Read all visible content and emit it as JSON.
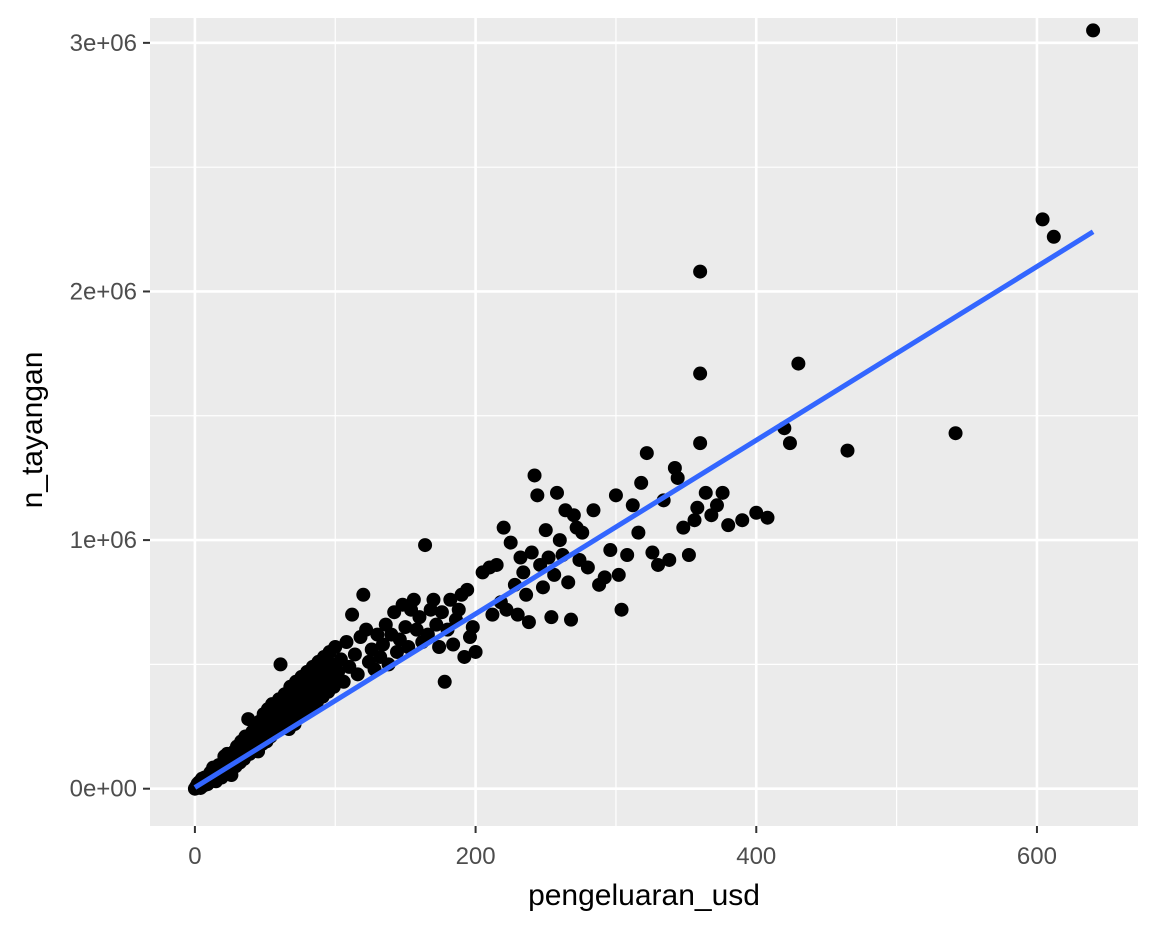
{
  "chart_data": {
    "type": "scatter",
    "title": "",
    "xlabel": "pengeluaran_usd",
    "ylabel": "n_tayangan",
    "xlim": [
      -32,
      672
    ],
    "ylim": [
      -150000,
      3100000
    ],
    "x_ticks": [
      {
        "value": 0,
        "label": "0"
      },
      {
        "value": 200,
        "label": "200"
      },
      {
        "value": 400,
        "label": "400"
      },
      {
        "value": 600,
        "label": "600"
      }
    ],
    "y_ticks": [
      {
        "value": 0,
        "label": "0e+00"
      },
      {
        "value": 1000000,
        "label": "1e+06"
      },
      {
        "value": 2000000,
        "label": "2e+06"
      },
      {
        "value": 3000000,
        "label": "3e+06"
      }
    ],
    "grid": true,
    "legend": "none",
    "colors": {
      "panel": "#ebebeb",
      "grid": "#ffffff",
      "point": "#000000",
      "trend": "#3366ff"
    },
    "trend_line": {
      "type": "linear",
      "from": [
        0,
        5000
      ],
      "to": [
        640,
        2240000
      ]
    },
    "points": [
      [
        0,
        0
      ],
      [
        1,
        2000
      ],
      [
        2,
        5000
      ],
      [
        1,
        9000
      ],
      [
        3,
        14000
      ],
      [
        2,
        20000
      ],
      [
        4,
        3000
      ],
      [
        3,
        26000
      ],
      [
        5,
        22000
      ],
      [
        6,
        12000
      ],
      [
        8,
        30000
      ],
      [
        5,
        40000
      ],
      [
        7,
        45000
      ],
      [
        9,
        18000
      ],
      [
        10,
        50000
      ],
      [
        12,
        40000
      ],
      [
        11,
        65000
      ],
      [
        14,
        55000
      ],
      [
        13,
        85000
      ],
      [
        15,
        30000
      ],
      [
        16,
        70000
      ],
      [
        18,
        60000
      ],
      [
        17,
        95000
      ],
      [
        19,
        45000
      ],
      [
        20,
        80000
      ],
      [
        22,
        110000
      ],
      [
        21,
        130000
      ],
      [
        24,
        75000
      ],
      [
        23,
        140000
      ],
      [
        25,
        100000
      ],
      [
        26,
        55000
      ],
      [
        27,
        120000
      ],
      [
        28,
        150000
      ],
      [
        29,
        90000
      ],
      [
        30,
        170000
      ],
      [
        31,
        130000
      ],
      [
        32,
        105000
      ],
      [
        33,
        190000
      ],
      [
        34,
        150000
      ],
      [
        35,
        120000
      ],
      [
        36,
        210000
      ],
      [
        37,
        160000
      ],
      [
        38,
        280000
      ],
      [
        39,
        140000
      ],
      [
        40,
        190000
      ],
      [
        41,
        230000
      ],
      [
        42,
        170000
      ],
      [
        43,
        250000
      ],
      [
        44,
        200000
      ],
      [
        45,
        150000
      ],
      [
        46,
        270000
      ],
      [
        47,
        220000
      ],
      [
        48,
        180000
      ],
      [
        49,
        300000
      ],
      [
        50,
        240000
      ],
      [
        51,
        190000
      ],
      [
        52,
        320000
      ],
      [
        53,
        260000
      ],
      [
        54,
        210000
      ],
      [
        55,
        340000
      ],
      [
        56,
        280000
      ],
      [
        57,
        230000
      ],
      [
        58,
        300000
      ],
      [
        59,
        250000
      ],
      [
        60,
        360000
      ],
      [
        61,
        500000
      ],
      [
        62,
        270000
      ],
      [
        63,
        330000
      ],
      [
        64,
        380000
      ],
      [
        65,
        290000
      ],
      [
        66,
        350000
      ],
      [
        67,
        240000
      ],
      [
        68,
        410000
      ],
      [
        69,
        310000
      ],
      [
        70,
        370000
      ],
      [
        71,
        260000
      ],
      [
        72,
        430000
      ],
      [
        73,
        330000
      ],
      [
        74,
        390000
      ],
      [
        75,
        290000
      ],
      [
        76,
        450000
      ],
      [
        77,
        350000
      ],
      [
        78,
        400000
      ],
      [
        79,
        310000
      ],
      [
        80,
        470000
      ],
      [
        81,
        370000
      ],
      [
        82,
        420000
      ],
      [
        83,
        330000
      ],
      [
        84,
        490000
      ],
      [
        85,
        390000
      ],
      [
        86,
        440000
      ],
      [
        87,
        350000
      ],
      [
        88,
        510000
      ],
      [
        89,
        410000
      ],
      [
        90,
        460000
      ],
      [
        91,
        370000
      ],
      [
        92,
        530000
      ],
      [
        93,
        430000
      ],
      [
        94,
        480000
      ],
      [
        95,
        390000
      ],
      [
        96,
        550000
      ],
      [
        97,
        450000
      ],
      [
        98,
        500000
      ],
      [
        99,
        410000
      ],
      [
        100,
        570000
      ],
      [
        102,
        470000
      ],
      [
        104,
        520000
      ],
      [
        106,
        430000
      ],
      [
        108,
        590000
      ],
      [
        110,
        490000
      ],
      [
        112,
        700000
      ],
      [
        114,
        540000
      ],
      [
        116,
        460000
      ],
      [
        118,
        610000
      ],
      [
        120,
        780000
      ],
      [
        122,
        640000
      ],
      [
        124,
        510000
      ],
      [
        126,
        560000
      ],
      [
        128,
        480000
      ],
      [
        130,
        620000
      ],
      [
        132,
        530000
      ],
      [
        134,
        580000
      ],
      [
        136,
        660000
      ],
      [
        138,
        500000
      ],
      [
        140,
        620000
      ],
      [
        142,
        710000
      ],
      [
        144,
        550000
      ],
      [
        146,
        600000
      ],
      [
        148,
        740000
      ],
      [
        150,
        650000
      ],
      [
        152,
        570000
      ],
      [
        154,
        720000
      ],
      [
        156,
        760000
      ],
      [
        158,
        640000
      ],
      [
        160,
        690000
      ],
      [
        162,
        590000
      ],
      [
        164,
        980000
      ],
      [
        166,
        620000
      ],
      [
        168,
        720000
      ],
      [
        170,
        760000
      ],
      [
        172,
        660000
      ],
      [
        174,
        570000
      ],
      [
        176,
        710000
      ],
      [
        178,
        430000
      ],
      [
        180,
        640000
      ],
      [
        182,
        760000
      ],
      [
        184,
        580000
      ],
      [
        186,
        680000
      ],
      [
        188,
        720000
      ],
      [
        190,
        780000
      ],
      [
        192,
        530000
      ],
      [
        194,
        800000
      ],
      [
        196,
        610000
      ],
      [
        198,
        650000
      ],
      [
        200,
        550000
      ],
      [
        205,
        870000
      ],
      [
        210,
        890000
      ],
      [
        212,
        700000
      ],
      [
        215,
        900000
      ],
      [
        218,
        750000
      ],
      [
        220,
        1050000
      ],
      [
        222,
        720000
      ],
      [
        225,
        990000
      ],
      [
        228,
        820000
      ],
      [
        230,
        700000
      ],
      [
        232,
        930000
      ],
      [
        234,
        870000
      ],
      [
        236,
        780000
      ],
      [
        238,
        670000
      ],
      [
        240,
        950000
      ],
      [
        242,
        1260000
      ],
      [
        244,
        1180000
      ],
      [
        246,
        900000
      ],
      [
        248,
        810000
      ],
      [
        250,
        1040000
      ],
      [
        252,
        930000
      ],
      [
        254,
        690000
      ],
      [
        256,
        860000
      ],
      [
        258,
        1190000
      ],
      [
        260,
        1000000
      ],
      [
        262,
        940000
      ],
      [
        264,
        1120000
      ],
      [
        266,
        830000
      ],
      [
        268,
        680000
      ],
      [
        270,
        1100000
      ],
      [
        272,
        1050000
      ],
      [
        274,
        920000
      ],
      [
        276,
        1030000
      ],
      [
        280,
        890000
      ],
      [
        284,
        1120000
      ],
      [
        288,
        820000
      ],
      [
        292,
        850000
      ],
      [
        296,
        960000
      ],
      [
        300,
        1180000
      ],
      [
        302,
        860000
      ],
      [
        304,
        720000
      ],
      [
        308,
        940000
      ],
      [
        312,
        1140000
      ],
      [
        316,
        1030000
      ],
      [
        318,
        1230000
      ],
      [
        322,
        1350000
      ],
      [
        326,
        950000
      ],
      [
        330,
        900000
      ],
      [
        334,
        1160000
      ],
      [
        338,
        920000
      ],
      [
        342,
        1290000
      ],
      [
        344,
        1250000
      ],
      [
        348,
        1050000
      ],
      [
        352,
        940000
      ],
      [
        356,
        1080000
      ],
      [
        358,
        1130000
      ],
      [
        360,
        2080000
      ],
      [
        360,
        1670000
      ],
      [
        360,
        1390000
      ],
      [
        364,
        1190000
      ],
      [
        368,
        1100000
      ],
      [
        372,
        1140000
      ],
      [
        376,
        1190000
      ],
      [
        380,
        1060000
      ],
      [
        390,
        1080000
      ],
      [
        400,
        1110000
      ],
      [
        408,
        1090000
      ],
      [
        420,
        1450000
      ],
      [
        424,
        1390000
      ],
      [
        430,
        1710000
      ],
      [
        465,
        1360000
      ],
      [
        542,
        1430000
      ],
      [
        604,
        2290000
      ],
      [
        612,
        2220000
      ],
      [
        640,
        3050000
      ]
    ]
  }
}
